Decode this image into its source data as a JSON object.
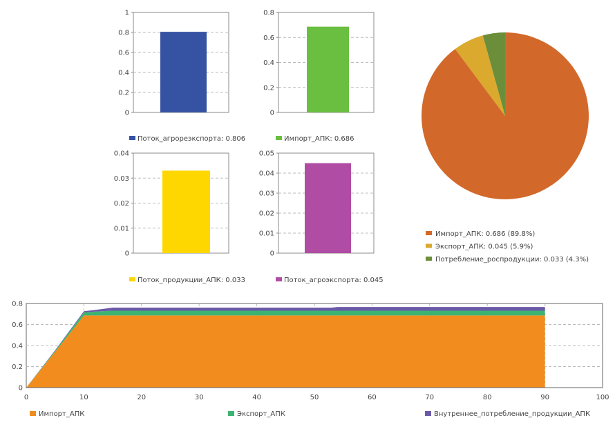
{
  "chart_data": [
    {
      "type": "bar",
      "ylim": [
        0,
        1
      ],
      "yticks": [
        "0",
        "0.2",
        "0.4",
        "0.6",
        "0.8",
        "1"
      ],
      "series": [
        {
          "name": "Поток_агрореэкспорта",
          "value": 0.806,
          "color": "#3653a3"
        }
      ],
      "legend": "Поток_агрореэкспорта: 0.806"
    },
    {
      "type": "bar",
      "ylim": [
        0,
        0.8
      ],
      "yticks": [
        "0",
        "0.2",
        "0.4",
        "0.6",
        "0.8"
      ],
      "series": [
        {
          "name": "Импорт_АПК",
          "value": 0.686,
          "color": "#6abf40"
        }
      ],
      "legend": "Импорт_АПК: 0.686"
    },
    {
      "type": "bar",
      "ylim": [
        0,
        0.04
      ],
      "yticks": [
        "0",
        "0.01",
        "0.02",
        "0.03",
        "0.04"
      ],
      "series": [
        {
          "name": "Поток_продукции_АПК",
          "value": 0.033,
          "color": "#ffd700"
        }
      ],
      "legend": "Поток_продукции_АПК: 0.033"
    },
    {
      "type": "bar",
      "ylim": [
        0,
        0.05
      ],
      "yticks": [
        "0",
        "0.01",
        "0.02",
        "0.03",
        "0.04",
        "0.05"
      ],
      "series": [
        {
          "name": "Поток_агроэкспорта",
          "value": 0.045,
          "color": "#b04ca4"
        }
      ],
      "legend": "Поток_агроэкспорта: 0.045"
    },
    {
      "type": "pie",
      "slices": [
        {
          "name": "Импорт_АПК",
          "value": 0.686,
          "percent": 89.8,
          "color": "#d2692a",
          "legend": "Импорт_АПК: 0.686 (89.8%)"
        },
        {
          "name": "Экспорт_АПК",
          "value": 0.045,
          "percent": 5.9,
          "color": "#dba92e",
          "legend": "Экспорт_АПК: 0.045 (5.9%)"
        },
        {
          "name": "Потребление_роспродукции",
          "value": 0.033,
          "percent": 4.3,
          "color": "#6b8e3a",
          "legend": "Потребление_роспродукции: 0.033 (4.3%)"
        }
      ]
    },
    {
      "type": "area",
      "stacked": true,
      "xlim": [
        0,
        100
      ],
      "ylim": [
        0,
        0.8
      ],
      "xticks": [
        "0",
        "10",
        "20",
        "30",
        "40",
        "50",
        "60",
        "70",
        "80",
        "90",
        "100"
      ],
      "yticks": [
        "0",
        "0.2",
        "0.4",
        "0.6",
        "0.8"
      ],
      "x": [
        0,
        5,
        10,
        13,
        15,
        53,
        54,
        90
      ],
      "series": [
        {
          "name": "Импорт_АПК",
          "color": "#f28c1e",
          "values": [
            0,
            0.34,
            0.686,
            0.686,
            0.686,
            0.686,
            0.686,
            0.686
          ]
        },
        {
          "name": "Экспорт_АПК",
          "color": "#3cb371",
          "values": [
            0,
            0.01,
            0.03,
            0.04,
            0.045,
            0.045,
            0.045,
            0.045
          ]
        },
        {
          "name": "Внутреннее_потребление_продукции_АПК",
          "color": "#6a5aa8",
          "values": [
            0,
            0.005,
            0.01,
            0.02,
            0.03,
            0.03,
            0.035,
            0.035
          ]
        }
      ]
    }
  ]
}
